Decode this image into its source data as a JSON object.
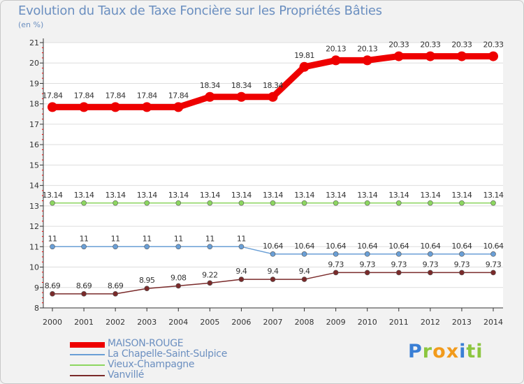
{
  "chart_data": {
    "type": "line",
    "title": "Evolution du Taux de Taxe Foncière sur les Propriétés Bâties",
    "subtitle": "(en %)",
    "x": [
      "2000",
      "2001",
      "2002",
      "2003",
      "2004",
      "2005",
      "2006",
      "2007",
      "2008",
      "2009",
      "2010",
      "2011",
      "2012",
      "2013",
      "2014"
    ],
    "ylim": [
      8,
      21
    ],
    "yticks": [
      "8",
      "9",
      "10",
      "11",
      "12",
      "13",
      "14",
      "15",
      "16",
      "17",
      "18",
      "19",
      "20",
      "21"
    ],
    "series": [
      {
        "name": "MAISON-ROUGE",
        "color": "#ee0000",
        "values": [
          17.84,
          17.84,
          17.84,
          17.84,
          17.84,
          18.34,
          18.34,
          18.34,
          19.81,
          20.13,
          20.13,
          20.33,
          20.33,
          20.33,
          20.33
        ],
        "labels": [
          "17.84",
          "17.84",
          "17.84",
          "17.84",
          "17.84",
          "18.34",
          "18.34",
          "18.34",
          "19.81",
          "20.13",
          "20.13",
          "20.33",
          "20.33",
          "20.33",
          "20.33"
        ]
      },
      {
        "name": "La Chapelle-Saint-Sulpice",
        "color": "#6a9fd6",
        "values": [
          11,
          11,
          11,
          11,
          11,
          11,
          11,
          10.64,
          10.64,
          10.64,
          10.64,
          10.64,
          10.64,
          10.64,
          10.64
        ],
        "labels": [
          "11",
          "11",
          "11",
          "11",
          "11",
          "11",
          "11",
          "10.64",
          "10.64",
          "10.64",
          "10.64",
          "10.64",
          "10.64",
          "10.64",
          "10.64"
        ]
      },
      {
        "name": "Vieux-Champagne",
        "color": "#8cd660",
        "values": [
          13.14,
          13.14,
          13.14,
          13.14,
          13.14,
          13.14,
          13.14,
          13.14,
          13.14,
          13.14,
          13.14,
          13.14,
          13.14,
          13.14,
          13.14
        ],
        "labels": [
          "13.14",
          "13.14",
          "13.14",
          "13.14",
          "13.14",
          "13.14",
          "13.14",
          "13.14",
          "13.14",
          "13.14",
          "13.14",
          "13.14",
          "13.14",
          "13.14",
          "13.14"
        ]
      },
      {
        "name": "Vanvillé",
        "color": "#7a2a2a",
        "values": [
          8.69,
          8.69,
          8.69,
          8.95,
          9.08,
          9.22,
          9.4,
          9.4,
          9.4,
          9.73,
          9.73,
          9.73,
          9.73,
          9.73,
          9.73
        ],
        "labels": [
          "8.69",
          "8.69",
          "8.69",
          "8.95",
          "9.08",
          "9.22",
          "9.4",
          "9.4",
          "9.4",
          "9.73",
          "9.73",
          "9.73",
          "9.73",
          "9.73",
          "9.73"
        ]
      }
    ]
  },
  "legend": {
    "items": [
      "MAISON-ROUGE",
      "La Chapelle-Saint-Sulpice",
      "Vieux-Champagne",
      "Vanvillé"
    ]
  },
  "logo": {
    "letters": [
      "P",
      "r",
      "o",
      "x",
      "i",
      "t",
      "i"
    ],
    "colors": [
      "#3a7fd5",
      "#8cc63f",
      "#f29b1c",
      "#f29b1c",
      "#3a7fd5",
      "#8cc63f",
      "#8cc63f"
    ]
  }
}
